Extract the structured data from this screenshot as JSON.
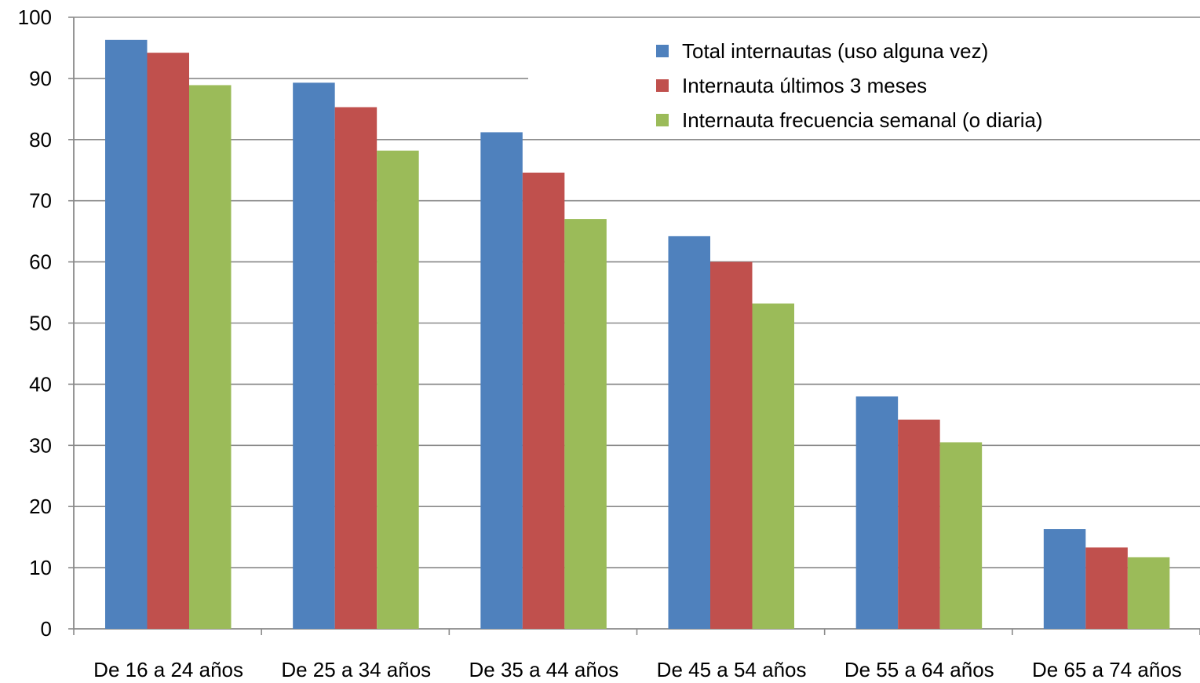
{
  "chart_data": {
    "type": "bar",
    "categories": [
      "De 16 a 24 años",
      "De 25 a 34 años",
      "De 35 a 44 años",
      "De 45 a 54 años",
      "De 55 a 64 años",
      "De 65 a 74 años"
    ],
    "series": [
      {
        "name": "Total internautas (uso alguna vez)",
        "color": "#4F81BD",
        "values": [
          96.3,
          89.3,
          81.2,
          64.2,
          38.0,
          16.3
        ]
      },
      {
        "name": "Internauta últimos 3 meses",
        "color": "#C0504D",
        "values": [
          94.2,
          85.3,
          74.6,
          60.0,
          34.2,
          13.3
        ]
      },
      {
        "name": "Internauta frecuencia semanal (o diaria)",
        "color": "#9BBB59",
        "values": [
          88.9,
          78.2,
          67.0,
          53.2,
          30.5,
          11.7
        ]
      }
    ],
    "yticks": [
      0,
      10,
      20,
      30,
      40,
      50,
      60,
      70,
      80,
      90,
      100
    ],
    "ylim": [
      0,
      100
    ],
    "grid": true,
    "legend": "top-right",
    "title": "",
    "xlabel": "",
    "ylabel": ""
  }
}
